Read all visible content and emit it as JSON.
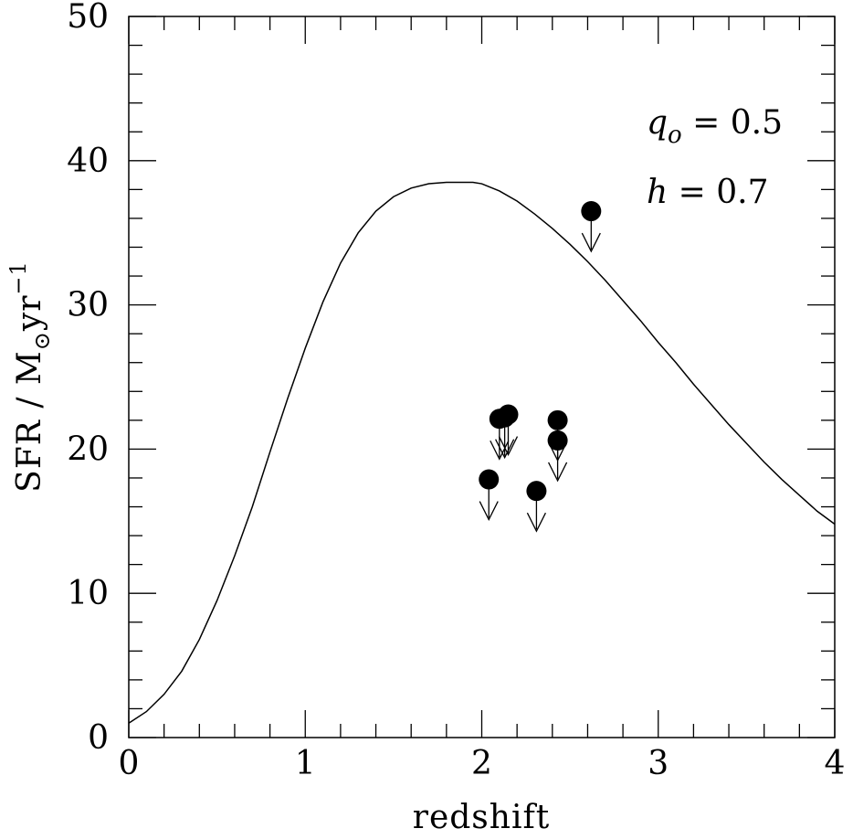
{
  "chart_data": {
    "type": "scatter",
    "xlabel": "redshift",
    "ylabel": {
      "prefix": "SFR  /  M",
      "subscript": "⊙",
      "unit": "yr",
      "exponent": "−1"
    },
    "xlim": [
      0,
      4
    ],
    "ylim": [
      0,
      50
    ],
    "x_ticks": [
      {
        "value": 0,
        "label": "0"
      },
      {
        "value": 1,
        "label": "1"
      },
      {
        "value": 2,
        "label": "2"
      },
      {
        "value": 3,
        "label": "3"
      },
      {
        "value": 4,
        "label": "4"
      }
    ],
    "y_ticks": [
      {
        "value": 0,
        "label": "0"
      },
      {
        "value": 10,
        "label": "10"
      },
      {
        "value": 20,
        "label": "20"
      },
      {
        "value": 30,
        "label": "30"
      },
      {
        "value": 40,
        "label": "40"
      },
      {
        "value": 50,
        "label": "50"
      }
    ],
    "x_minor_step": 0.2,
    "y_minor_step": 2,
    "grid": false,
    "annotations": [
      {
        "symbol": "q",
        "subscript": "o",
        "text": " = 0.5"
      },
      {
        "symbol": "h",
        "text": " = 0.7"
      }
    ],
    "curve": {
      "x": [
        0,
        0.1,
        0.2,
        0.3,
        0.4,
        0.5,
        0.6,
        0.7,
        0.8,
        0.9,
        1.0,
        1.1,
        1.2,
        1.3,
        1.4,
        1.5,
        1.6,
        1.7,
        1.8,
        1.9,
        1.95,
        2.0,
        2.1,
        2.2,
        2.3,
        2.4,
        2.5,
        2.6,
        2.7,
        2.8,
        2.9,
        3.0,
        3.1,
        3.2,
        3.3,
        3.4,
        3.5,
        3.6,
        3.7,
        3.8,
        3.9,
        4.0
      ],
      "y": [
        1.0,
        1.8,
        3.0,
        4.6,
        6.8,
        9.5,
        12.6,
        16.0,
        19.8,
        23.5,
        27.0,
        30.2,
        32.9,
        35.0,
        36.5,
        37.5,
        38.1,
        38.4,
        38.5,
        38.5,
        38.5,
        38.4,
        37.9,
        37.2,
        36.3,
        35.3,
        34.2,
        33.0,
        31.7,
        30.3,
        28.9,
        27.4,
        26.0,
        24.5,
        23.1,
        21.7,
        20.4,
        19.1,
        17.9,
        16.8,
        15.7,
        14.8
      ]
    },
    "upper_limits": [
      {
        "x": 2.04,
        "y": 17.9
      },
      {
        "x": 2.1,
        "y": 22.1
      },
      {
        "x": 2.13,
        "y": 22.2
      },
      {
        "x": 2.15,
        "y": 22.4
      },
      {
        "x": 2.31,
        "y": 17.1
      },
      {
        "x": 2.43,
        "y": 22.0
      },
      {
        "x": 2.43,
        "y": 20.6
      },
      {
        "x": 2.62,
        "y": 36.5
      }
    ]
  }
}
